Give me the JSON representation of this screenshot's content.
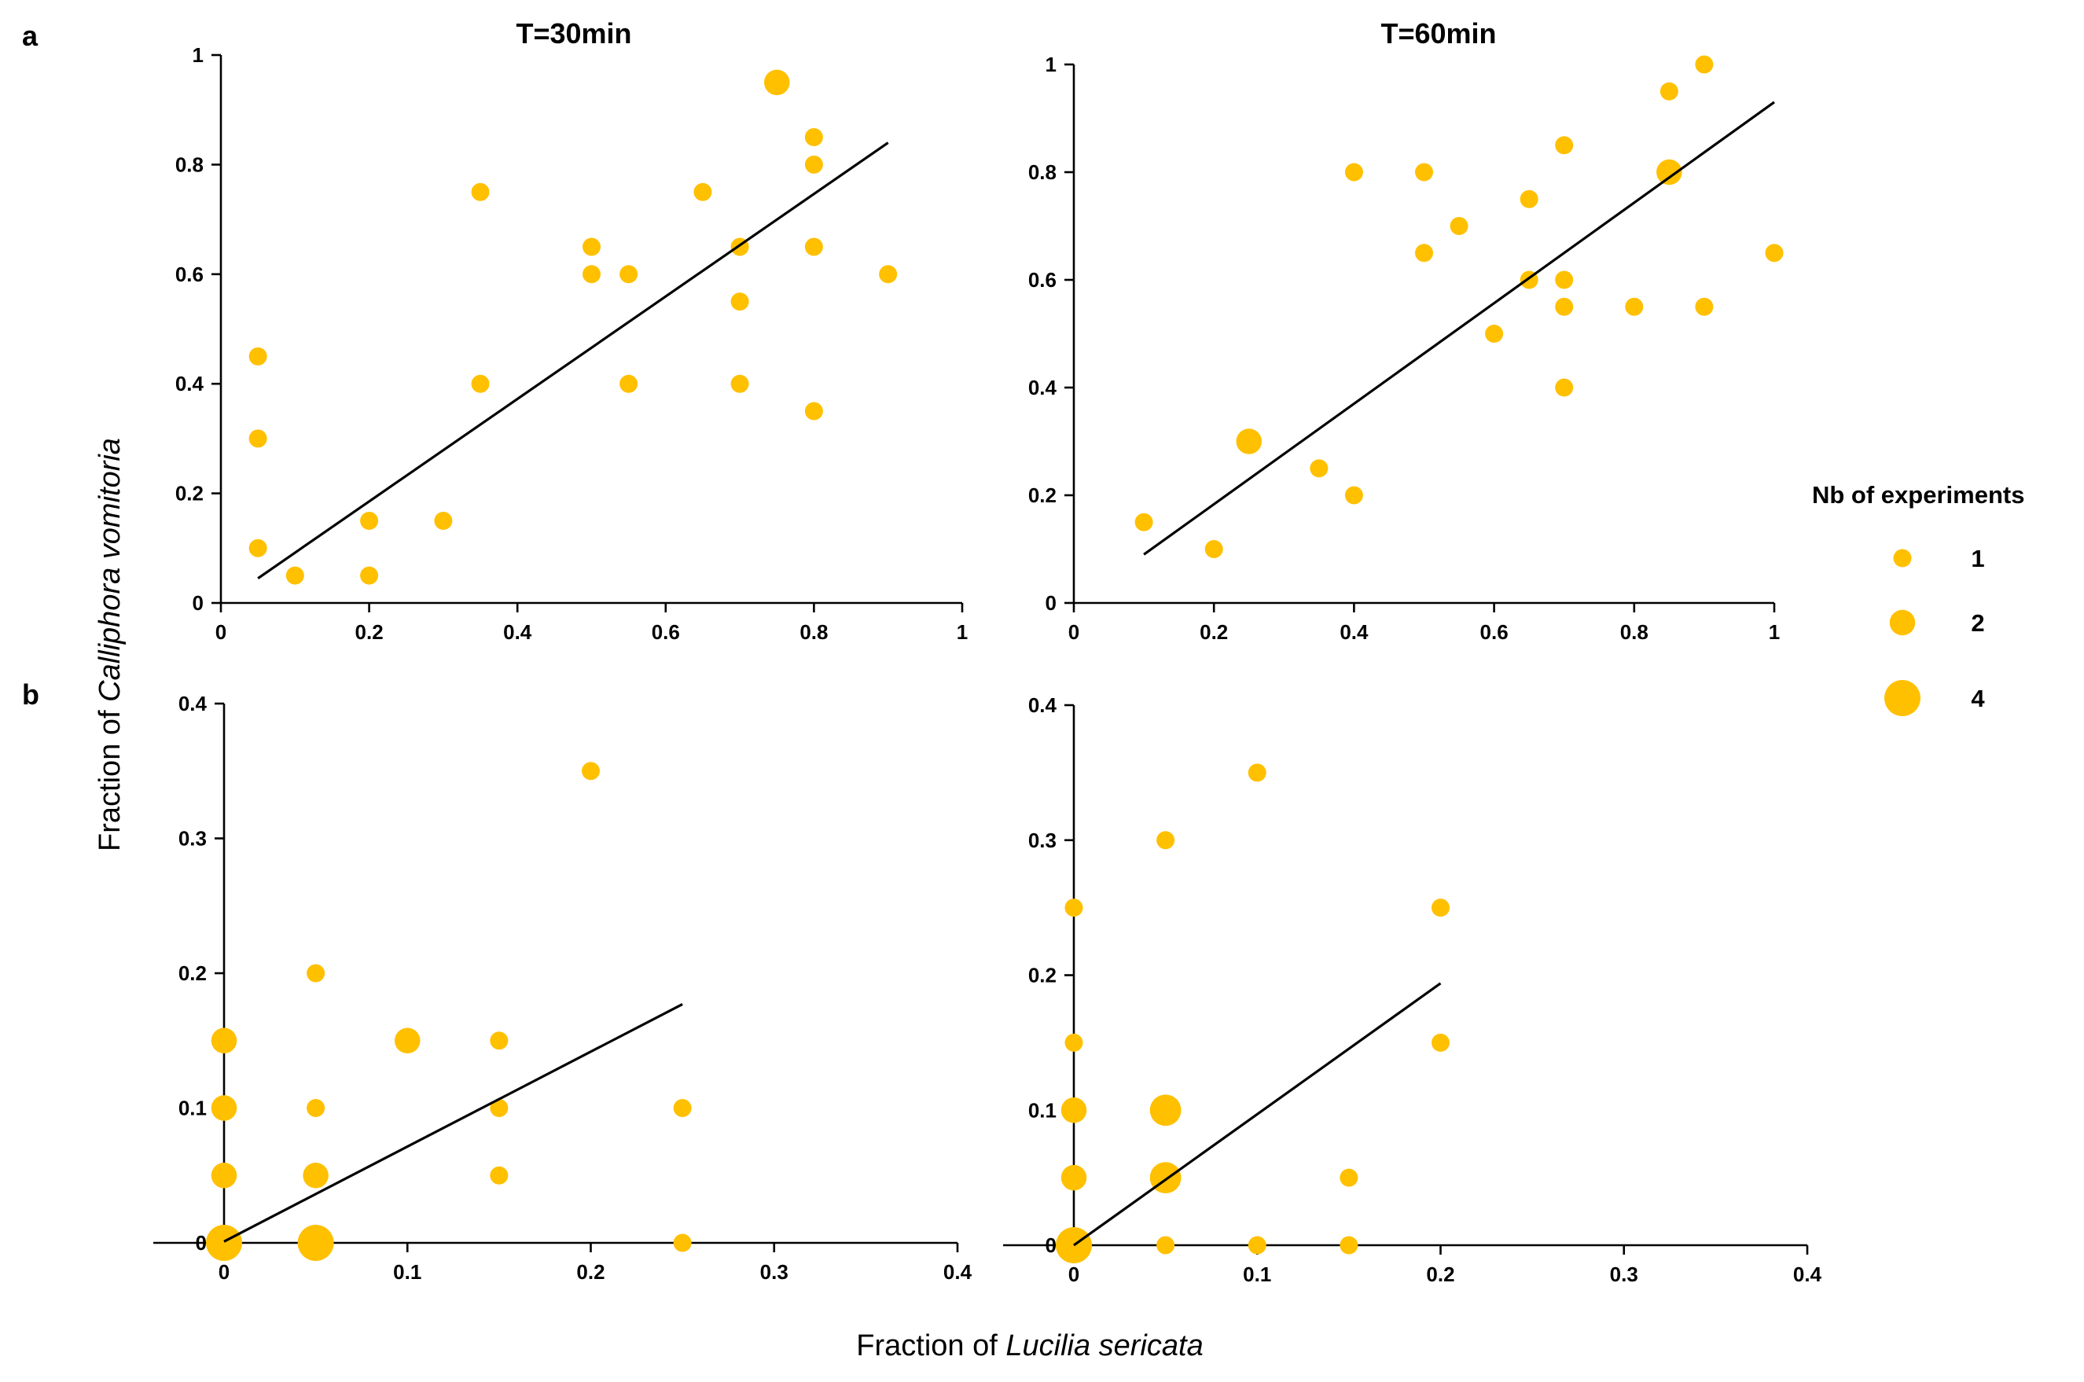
{
  "figure": {
    "panel_labels": [
      "a",
      "b"
    ],
    "xlabel_prefix": "Fraction of ",
    "xlabel_species": "Lucilia sericata",
    "ylabel_prefix": "Fraction of ",
    "ylabel_species": "Calliphora vomitoria",
    "marker_color": "#FFC000",
    "line_color": "#000000"
  },
  "legend": {
    "title": "Nb of experiments",
    "entries": [
      {
        "label": "1",
        "count": 1
      },
      {
        "label": "2",
        "count": 2
      },
      {
        "label": "4",
        "count": 4
      }
    ]
  },
  "chart_data": [
    {
      "type": "scatter",
      "panel": "a",
      "title": "T=30min",
      "xlim": [
        0,
        1
      ],
      "ylim": [
        0,
        1
      ],
      "xticks": [
        0,
        0.2,
        0.4,
        0.6,
        0.8,
        1
      ],
      "yticks": [
        0,
        0.2,
        0.4,
        0.6,
        0.8,
        1
      ],
      "xtick_labels": [
        "0",
        "0.2",
        "0.4",
        "0.6",
        "0.8",
        "1"
      ],
      "ytick_labels": [
        "0",
        "0.2",
        "0.4",
        "0.6",
        "0.8",
        "1"
      ],
      "points": [
        {
          "x": 0.05,
          "y": 0.45,
          "n": 1
        },
        {
          "x": 0.05,
          "y": 0.3,
          "n": 1
        },
        {
          "x": 0.05,
          "y": 0.1,
          "n": 1
        },
        {
          "x": 0.1,
          "y": 0.05,
          "n": 1
        },
        {
          "x": 0.2,
          "y": 0.15,
          "n": 1
        },
        {
          "x": 0.2,
          "y": 0.05,
          "n": 1
        },
        {
          "x": 0.3,
          "y": 0.15,
          "n": 1
        },
        {
          "x": 0.35,
          "y": 0.75,
          "n": 1
        },
        {
          "x": 0.35,
          "y": 0.4,
          "n": 1
        },
        {
          "x": 0.5,
          "y": 0.65,
          "n": 1
        },
        {
          "x": 0.5,
          "y": 0.6,
          "n": 1
        },
        {
          "x": 0.55,
          "y": 0.6,
          "n": 1
        },
        {
          "x": 0.55,
          "y": 0.4,
          "n": 1
        },
        {
          "x": 0.65,
          "y": 0.75,
          "n": 1
        },
        {
          "x": 0.7,
          "y": 0.65,
          "n": 1
        },
        {
          "x": 0.7,
          "y": 0.55,
          "n": 1
        },
        {
          "x": 0.7,
          "y": 0.4,
          "n": 1
        },
        {
          "x": 0.75,
          "y": 0.95,
          "n": 2
        },
        {
          "x": 0.8,
          "y": 0.85,
          "n": 1
        },
        {
          "x": 0.8,
          "y": 0.8,
          "n": 1
        },
        {
          "x": 0.8,
          "y": 0.65,
          "n": 1
        },
        {
          "x": 0.8,
          "y": 0.35,
          "n": 1
        },
        {
          "x": 0.9,
          "y": 0.6,
          "n": 1
        }
      ],
      "fit": {
        "x": [
          0.05,
          0.9
        ],
        "y": [
          0.045,
          0.84
        ]
      }
    },
    {
      "type": "scatter",
      "panel": "a",
      "title": "T=60min",
      "xlim": [
        0,
        1
      ],
      "ylim": [
        0,
        1
      ],
      "xticks": [
        0,
        0.2,
        0.4,
        0.6,
        0.8,
        1
      ],
      "yticks": [
        0,
        0.2,
        0.4,
        0.6,
        0.8,
        1
      ],
      "xtick_labels": [
        "0",
        "0.2",
        "0.4",
        "0.6",
        "0.8",
        "1"
      ],
      "ytick_labels": [
        "0",
        "0.2",
        "0.4",
        "0.6",
        "0.8",
        "1"
      ],
      "points": [
        {
          "x": 0.1,
          "y": 0.15,
          "n": 1
        },
        {
          "x": 0.2,
          "y": 0.1,
          "n": 1
        },
        {
          "x": 0.25,
          "y": 0.3,
          "n": 2
        },
        {
          "x": 0.35,
          "y": 0.25,
          "n": 1
        },
        {
          "x": 0.4,
          "y": 0.2,
          "n": 1
        },
        {
          "x": 0.4,
          "y": 0.8,
          "n": 1
        },
        {
          "x": 0.5,
          "y": 0.8,
          "n": 1
        },
        {
          "x": 0.5,
          "y": 0.65,
          "n": 1
        },
        {
          "x": 0.55,
          "y": 0.7,
          "n": 1
        },
        {
          "x": 0.6,
          "y": 0.5,
          "n": 1
        },
        {
          "x": 0.65,
          "y": 0.75,
          "n": 1
        },
        {
          "x": 0.65,
          "y": 0.6,
          "n": 1
        },
        {
          "x": 0.7,
          "y": 0.85,
          "n": 1
        },
        {
          "x": 0.7,
          "y": 0.6,
          "n": 1
        },
        {
          "x": 0.7,
          "y": 0.55,
          "n": 1
        },
        {
          "x": 0.7,
          "y": 0.4,
          "n": 1
        },
        {
          "x": 0.8,
          "y": 0.55,
          "n": 1
        },
        {
          "x": 0.85,
          "y": 0.95,
          "n": 1
        },
        {
          "x": 0.85,
          "y": 0.8,
          "n": 2
        },
        {
          "x": 0.9,
          "y": 1.0,
          "n": 1
        },
        {
          "x": 0.9,
          "y": 0.55,
          "n": 1
        },
        {
          "x": 1.0,
          "y": 0.65,
          "n": 1
        }
      ],
      "fit": {
        "x": [
          0.1,
          1.0
        ],
        "y": [
          0.09,
          0.93
        ]
      }
    },
    {
      "type": "scatter",
      "panel": "b",
      "title": "",
      "xlim": [
        -0.04,
        0.4
      ],
      "ylim": [
        0,
        0.4
      ],
      "xticks": [
        0,
        0.1,
        0.2,
        0.3,
        0.4
      ],
      "yticks": [
        0,
        0.1,
        0.2,
        0.3,
        0.4
      ],
      "xtick_labels": [
        "0",
        "0.1",
        "0.2",
        "0.3",
        "0.4"
      ],
      "ytick_labels": [
        "0",
        "0.1",
        "0.2",
        "0.3",
        "0.4"
      ],
      "points": [
        {
          "x": 0,
          "y": 0,
          "n": 4
        },
        {
          "x": 0,
          "y": 0.05,
          "n": 2
        },
        {
          "x": 0,
          "y": 0.1,
          "n": 2
        },
        {
          "x": 0,
          "y": 0.15,
          "n": 2
        },
        {
          "x": 0.05,
          "y": 0,
          "n": 4
        },
        {
          "x": 0.05,
          "y": 0.05,
          "n": 2
        },
        {
          "x": 0.05,
          "y": 0.1,
          "n": 1
        },
        {
          "x": 0.05,
          "y": 0.2,
          "n": 1
        },
        {
          "x": 0.1,
          "y": 0.15,
          "n": 2
        },
        {
          "x": 0.15,
          "y": 0.15,
          "n": 1
        },
        {
          "x": 0.15,
          "y": 0.1,
          "n": 1
        },
        {
          "x": 0.15,
          "y": 0.05,
          "n": 1
        },
        {
          "x": 0.2,
          "y": 0.35,
          "n": 1
        },
        {
          "x": 0.25,
          "y": 0.1,
          "n": 1
        },
        {
          "x": 0.25,
          "y": 0,
          "n": 1
        }
      ],
      "fit": {
        "x": [
          0,
          0.25
        ],
        "y": [
          0.001,
          0.177
        ]
      }
    },
    {
      "type": "scatter",
      "panel": "b",
      "title": "",
      "xlim": [
        -0.04,
        0.4
      ],
      "ylim": [
        0,
        0.4
      ],
      "xticks": [
        0,
        0.1,
        0.2,
        0.3,
        0.4
      ],
      "yticks": [
        0,
        0.1,
        0.2,
        0.3,
        0.4
      ],
      "xtick_labels": [
        "0",
        "0.1",
        "0.2",
        "0.3",
        "0.4"
      ],
      "ytick_labels": [
        "0",
        "0.1",
        "0.2",
        "0.3",
        "0.4"
      ],
      "points": [
        {
          "x": 0,
          "y": 0,
          "n": 4
        },
        {
          "x": 0,
          "y": 0.05,
          "n": 2
        },
        {
          "x": 0,
          "y": 0.1,
          "n": 2
        },
        {
          "x": 0,
          "y": 0.15,
          "n": 1
        },
        {
          "x": 0,
          "y": 0.25,
          "n": 1
        },
        {
          "x": 0.05,
          "y": 0.3,
          "n": 1
        },
        {
          "x": 0.05,
          "y": 0.1,
          "n": 3
        },
        {
          "x": 0.05,
          "y": 0.05,
          "n": 3
        },
        {
          "x": 0.05,
          "y": 0,
          "n": 1
        },
        {
          "x": 0.1,
          "y": 0.35,
          "n": 1
        },
        {
          "x": 0.1,
          "y": 0,
          "n": 1
        },
        {
          "x": 0.15,
          "y": 0.05,
          "n": 1
        },
        {
          "x": 0.15,
          "y": 0,
          "n": 1
        },
        {
          "x": 0.2,
          "y": 0.25,
          "n": 1
        },
        {
          "x": 0.2,
          "y": 0.15,
          "n": 1
        }
      ],
      "fit": {
        "x": [
          0,
          0.2
        ],
        "y": [
          0,
          0.194
        ]
      }
    }
  ]
}
